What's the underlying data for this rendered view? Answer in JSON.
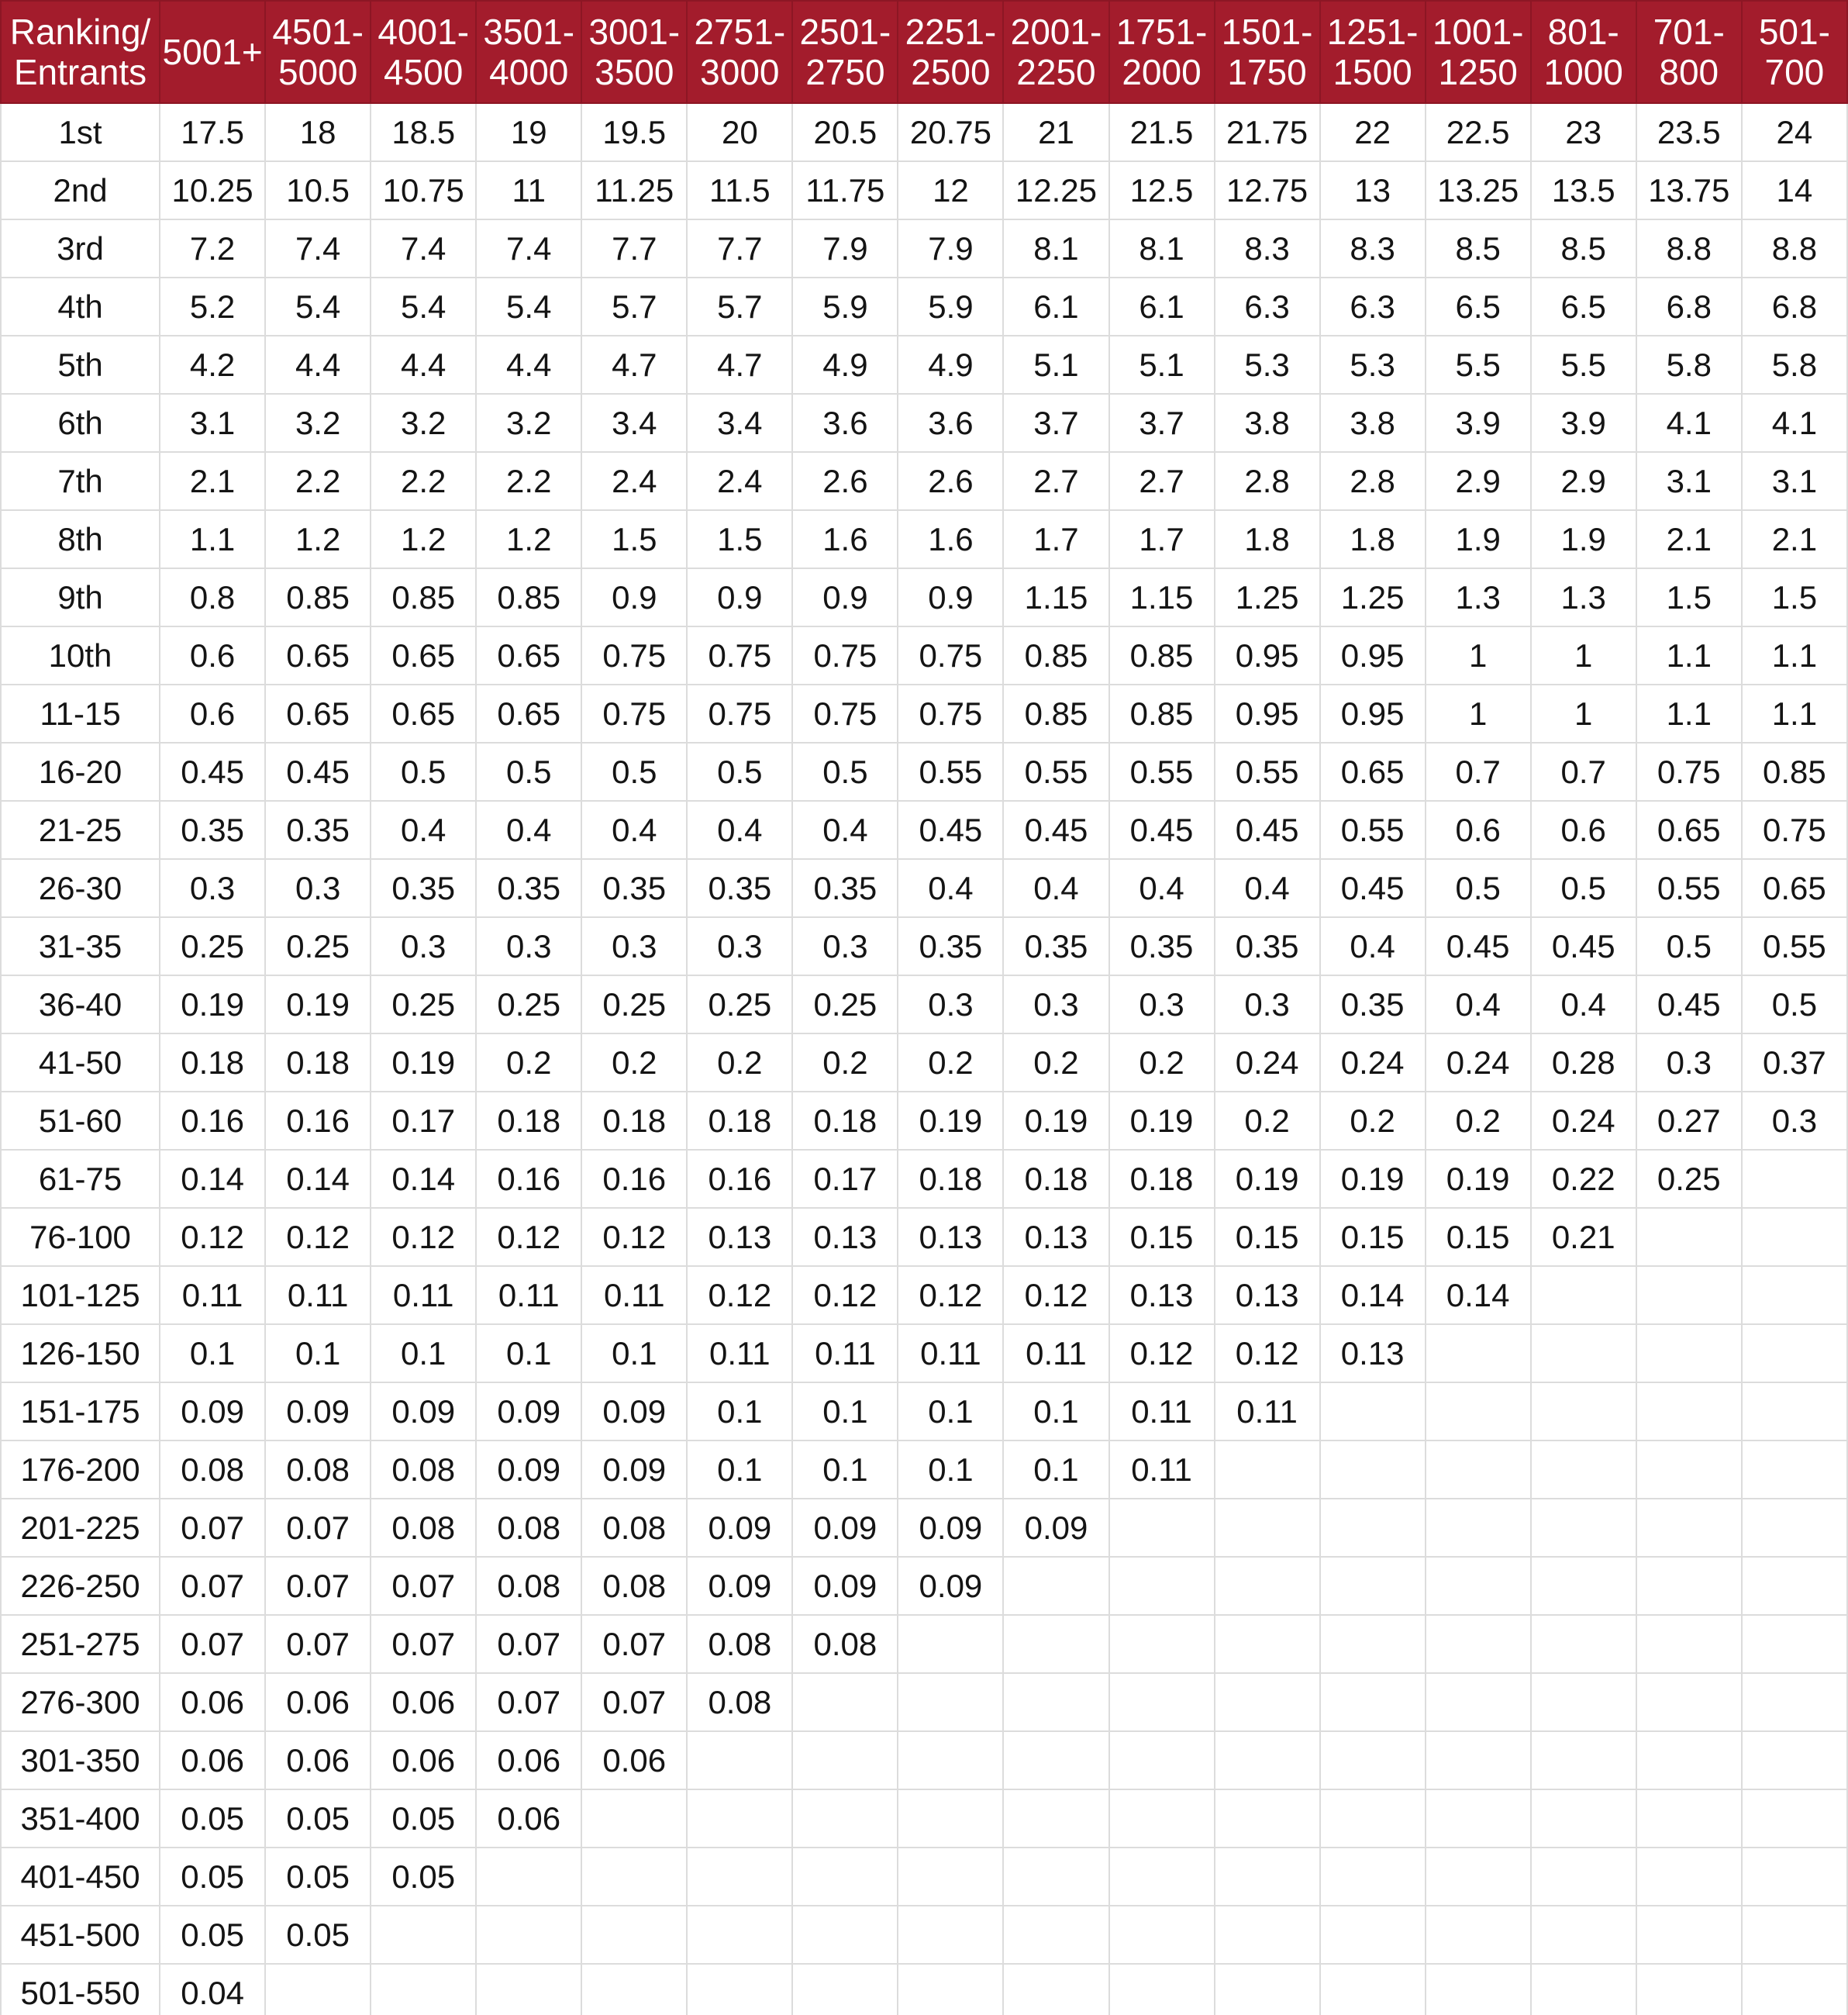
{
  "header": {
    "corner": [
      "Ranking/",
      "Entrants"
    ],
    "columns": [
      [
        "5001+"
      ],
      [
        "4501-",
        "5000"
      ],
      [
        "4001-",
        "4500"
      ],
      [
        "3501-",
        "4000"
      ],
      [
        "3001-",
        "3500"
      ],
      [
        "2751-",
        "3000"
      ],
      [
        "2501-",
        "2750"
      ],
      [
        "2251-",
        "2500"
      ],
      [
        "2001-",
        "2250"
      ],
      [
        "1751-",
        "2000"
      ],
      [
        "1501-",
        "1750"
      ],
      [
        "1251-",
        "1500"
      ],
      [
        "1001-",
        "1250"
      ],
      [
        "801-",
        "1000"
      ],
      [
        "701-",
        "800"
      ],
      [
        "501-",
        "700"
      ]
    ]
  },
  "rows": [
    {
      "rank": "1st",
      "values": [
        "17.5",
        "18",
        "18.5",
        "19",
        "19.5",
        "20",
        "20.5",
        "20.75",
        "21",
        "21.5",
        "21.75",
        "22",
        "22.5",
        "23",
        "23.5",
        "24"
      ]
    },
    {
      "rank": "2nd",
      "values": [
        "10.25",
        "10.5",
        "10.75",
        "11",
        "11.25",
        "11.5",
        "11.75",
        "12",
        "12.25",
        "12.5",
        "12.75",
        "13",
        "13.25",
        "13.5",
        "13.75",
        "14"
      ]
    },
    {
      "rank": "3rd",
      "values": [
        "7.2",
        "7.4",
        "7.4",
        "7.4",
        "7.7",
        "7.7",
        "7.9",
        "7.9",
        "8.1",
        "8.1",
        "8.3",
        "8.3",
        "8.5",
        "8.5",
        "8.8",
        "8.8"
      ]
    },
    {
      "rank": "4th",
      "values": [
        "5.2",
        "5.4",
        "5.4",
        "5.4",
        "5.7",
        "5.7",
        "5.9",
        "5.9",
        "6.1",
        "6.1",
        "6.3",
        "6.3",
        "6.5",
        "6.5",
        "6.8",
        "6.8"
      ]
    },
    {
      "rank": "5th",
      "values": [
        "4.2",
        "4.4",
        "4.4",
        "4.4",
        "4.7",
        "4.7",
        "4.9",
        "4.9",
        "5.1",
        "5.1",
        "5.3",
        "5.3",
        "5.5",
        "5.5",
        "5.8",
        "5.8"
      ]
    },
    {
      "rank": "6th",
      "values": [
        "3.1",
        "3.2",
        "3.2",
        "3.2",
        "3.4",
        "3.4",
        "3.6",
        "3.6",
        "3.7",
        "3.7",
        "3.8",
        "3.8",
        "3.9",
        "3.9",
        "4.1",
        "4.1"
      ]
    },
    {
      "rank": "7th",
      "values": [
        "2.1",
        "2.2",
        "2.2",
        "2.2",
        "2.4",
        "2.4",
        "2.6",
        "2.6",
        "2.7",
        "2.7",
        "2.8",
        "2.8",
        "2.9",
        "2.9",
        "3.1",
        "3.1"
      ]
    },
    {
      "rank": "8th",
      "values": [
        "1.1",
        "1.2",
        "1.2",
        "1.2",
        "1.5",
        "1.5",
        "1.6",
        "1.6",
        "1.7",
        "1.7",
        "1.8",
        "1.8",
        "1.9",
        "1.9",
        "2.1",
        "2.1"
      ]
    },
    {
      "rank": "9th",
      "values": [
        "0.8",
        "0.85",
        "0.85",
        "0.85",
        "0.9",
        "0.9",
        "0.9",
        "0.9",
        "1.15",
        "1.15",
        "1.25",
        "1.25",
        "1.3",
        "1.3",
        "1.5",
        "1.5"
      ]
    },
    {
      "rank": "10th",
      "values": [
        "0.6",
        "0.65",
        "0.65",
        "0.65",
        "0.75",
        "0.75",
        "0.75",
        "0.75",
        "0.85",
        "0.85",
        "0.95",
        "0.95",
        "1",
        "1",
        "1.1",
        "1.1"
      ]
    },
    {
      "rank": "11-15",
      "values": [
        "0.6",
        "0.65",
        "0.65",
        "0.65",
        "0.75",
        "0.75",
        "0.75",
        "0.75",
        "0.85",
        "0.85",
        "0.95",
        "0.95",
        "1",
        "1",
        "1.1",
        "1.1"
      ]
    },
    {
      "rank": "16-20",
      "values": [
        "0.45",
        "0.45",
        "0.5",
        "0.5",
        "0.5",
        "0.5",
        "0.5",
        "0.55",
        "0.55",
        "0.55",
        "0.55",
        "0.65",
        "0.7",
        "0.7",
        "0.75",
        "0.85"
      ]
    },
    {
      "rank": "21-25",
      "values": [
        "0.35",
        "0.35",
        "0.4",
        "0.4",
        "0.4",
        "0.4",
        "0.4",
        "0.45",
        "0.45",
        "0.45",
        "0.45",
        "0.55",
        "0.6",
        "0.6",
        "0.65",
        "0.75"
      ]
    },
    {
      "rank": "26-30",
      "values": [
        "0.3",
        "0.3",
        "0.35",
        "0.35",
        "0.35",
        "0.35",
        "0.35",
        "0.4",
        "0.4",
        "0.4",
        "0.4",
        "0.45",
        "0.5",
        "0.5",
        "0.55",
        "0.65"
      ]
    },
    {
      "rank": "31-35",
      "values": [
        "0.25",
        "0.25",
        "0.3",
        "0.3",
        "0.3",
        "0.3",
        "0.3",
        "0.35",
        "0.35",
        "0.35",
        "0.35",
        "0.4",
        "0.45",
        "0.45",
        "0.5",
        "0.55"
      ]
    },
    {
      "rank": "36-40",
      "values": [
        "0.19",
        "0.19",
        "0.25",
        "0.25",
        "0.25",
        "0.25",
        "0.25",
        "0.3",
        "0.3",
        "0.3",
        "0.3",
        "0.35",
        "0.4",
        "0.4",
        "0.45",
        "0.5"
      ]
    },
    {
      "rank": "41-50",
      "values": [
        "0.18",
        "0.18",
        "0.19",
        "0.2",
        "0.2",
        "0.2",
        "0.2",
        "0.2",
        "0.2",
        "0.2",
        "0.24",
        "0.24",
        "0.24",
        "0.28",
        "0.3",
        "0.37"
      ]
    },
    {
      "rank": "51-60",
      "values": [
        "0.16",
        "0.16",
        "0.17",
        "0.18",
        "0.18",
        "0.18",
        "0.18",
        "0.19",
        "0.19",
        "0.19",
        "0.2",
        "0.2",
        "0.2",
        "0.24",
        "0.27",
        "0.3"
      ]
    },
    {
      "rank": "61-75",
      "values": [
        "0.14",
        "0.14",
        "0.14",
        "0.16",
        "0.16",
        "0.16",
        "0.17",
        "0.18",
        "0.18",
        "0.18",
        "0.19",
        "0.19",
        "0.19",
        "0.22",
        "0.25",
        ""
      ]
    },
    {
      "rank": "76-100",
      "values": [
        "0.12",
        "0.12",
        "0.12",
        "0.12",
        "0.12",
        "0.13",
        "0.13",
        "0.13",
        "0.13",
        "0.15",
        "0.15",
        "0.15",
        "0.15",
        "0.21",
        "",
        ""
      ]
    },
    {
      "rank": "101-125",
      "values": [
        "0.11",
        "0.11",
        "0.11",
        "0.11",
        "0.11",
        "0.12",
        "0.12",
        "0.12",
        "0.12",
        "0.13",
        "0.13",
        "0.14",
        "0.14",
        "",
        "",
        ""
      ]
    },
    {
      "rank": "126-150",
      "values": [
        "0.1",
        "0.1",
        "0.1",
        "0.1",
        "0.1",
        "0.11",
        "0.11",
        "0.11",
        "0.11",
        "0.12",
        "0.12",
        "0.13",
        "",
        "",
        "",
        ""
      ]
    },
    {
      "rank": "151-175",
      "values": [
        "0.09",
        "0.09",
        "0.09",
        "0.09",
        "0.09",
        "0.1",
        "0.1",
        "0.1",
        "0.1",
        "0.11",
        "0.11",
        "",
        "",
        "",
        "",
        ""
      ]
    },
    {
      "rank": "176-200",
      "values": [
        "0.08",
        "0.08",
        "0.08",
        "0.09",
        "0.09",
        "0.1",
        "0.1",
        "0.1",
        "0.1",
        "0.11",
        "",
        "",
        "",
        "",
        "",
        ""
      ]
    },
    {
      "rank": "201-225",
      "values": [
        "0.07",
        "0.07",
        "0.08",
        "0.08",
        "0.08",
        "0.09",
        "0.09",
        "0.09",
        "0.09",
        "",
        "",
        "",
        "",
        "",
        "",
        ""
      ]
    },
    {
      "rank": "226-250",
      "values": [
        "0.07",
        "0.07",
        "0.07",
        "0.08",
        "0.08",
        "0.09",
        "0.09",
        "0.09",
        "",
        "",
        "",
        "",
        "",
        "",
        "",
        ""
      ]
    },
    {
      "rank": "251-275",
      "values": [
        "0.07",
        "0.07",
        "0.07",
        "0.07",
        "0.07",
        "0.08",
        "0.08",
        "",
        "",
        "",
        "",
        "",
        "",
        "",
        "",
        ""
      ]
    },
    {
      "rank": "276-300",
      "values": [
        "0.06",
        "0.06",
        "0.06",
        "0.07",
        "0.07",
        "0.08",
        "",
        "",
        "",
        "",
        "",
        "",
        "",
        "",
        "",
        ""
      ]
    },
    {
      "rank": "301-350",
      "values": [
        "0.06",
        "0.06",
        "0.06",
        "0.06",
        "0.06",
        "",
        "",
        "",
        "",
        "",
        "",
        "",
        "",
        "",
        "",
        ""
      ]
    },
    {
      "rank": "351-400",
      "values": [
        "0.05",
        "0.05",
        "0.05",
        "0.06",
        "",
        "",
        "",
        "",
        "",
        "",
        "",
        "",
        "",
        "",
        "",
        ""
      ]
    },
    {
      "rank": "401-450",
      "values": [
        "0.05",
        "0.05",
        "0.05",
        "",
        "",
        "",
        "",
        "",
        "",
        "",
        "",
        "",
        "",
        "",
        "",
        ""
      ]
    },
    {
      "rank": "451-500",
      "values": [
        "0.05",
        "0.05",
        "",
        "",
        "",
        "",
        "",
        "",
        "",
        "",
        "",
        "",
        "",
        "",
        "",
        ""
      ]
    },
    {
      "rank": "501-550",
      "values": [
        "0.04",
        "",
        "",
        "",
        "",
        "",
        "",
        "",
        "",
        "",
        "",
        "",
        "",
        "",
        "",
        ""
      ]
    }
  ],
  "colors": {
    "header_bg": "#a31c2c",
    "header_text": "#ffffff",
    "grid_line": "#dcdcdc"
  }
}
